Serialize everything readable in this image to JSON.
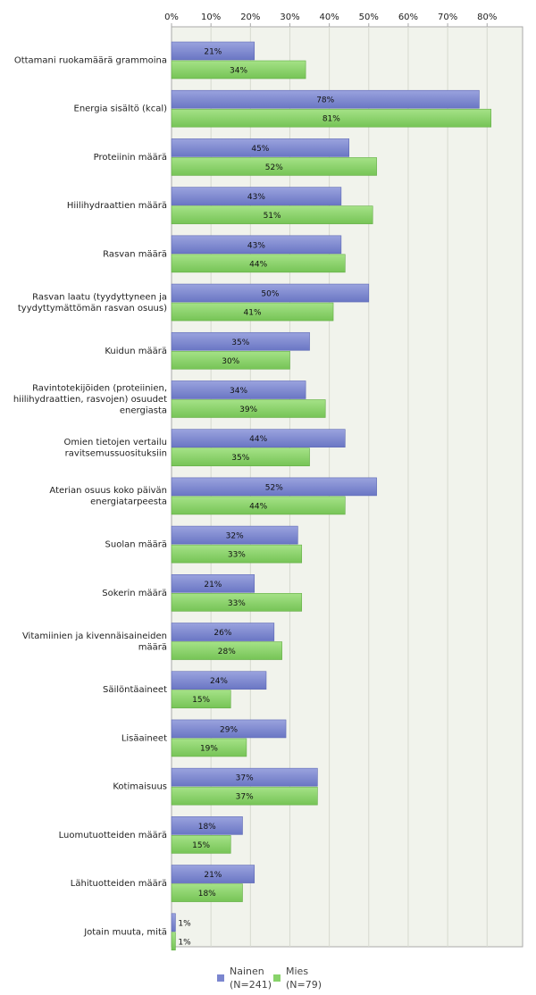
{
  "chart_data": {
    "type": "bar",
    "orientation": "horizontal",
    "title": "",
    "xlabel": "",
    "ylabel": "",
    "xlim": [
      0,
      89
    ],
    "x_ticks": [
      0,
      10,
      20,
      30,
      40,
      50,
      60,
      70,
      80
    ],
    "tick_suffix": "%",
    "grid": true,
    "legend_position": "bottom",
    "categories": [
      "Ottamani ruokamäärä grammoina",
      "Energia sisältö (kcal)",
      "Proteiinin määrä",
      "Hiilihydraattien määrä",
      "Rasvan määrä",
      "Rasvan laatu (tyydyttyneen ja tyydyttymättömän rasvan osuus)",
      "Kuidun määrä",
      "Ravintotekijöiden (proteiinien, hiilihydraattien, rasvojen) osuudet energiasta",
      "Omien tietojen vertailu ravitsemussuosituksiin",
      "Aterian osuus koko päivän energiatarpeesta",
      "Suolan määrä",
      "Sokerin määrä",
      "Vitamiinien ja kivennäisaineiden määrä",
      "Säilöntäaineet",
      "Lisäaineet",
      "Kotimaisuus",
      "Luomutuotteiden määrä",
      "Lähituotteiden määrä",
      "Jotain muuta, mitä"
    ],
    "category_lines": [
      [
        "Ottamani ruokamäärä grammoina"
      ],
      [
        "Energia sisältö (kcal)"
      ],
      [
        "Proteiinin määrä"
      ],
      [
        "Hiilihydraattien määrä"
      ],
      [
        "Rasvan määrä"
      ],
      [
        "Rasvan laatu (tyydyttyneen ja",
        "tyydyttymättömän rasvan osuus)"
      ],
      [
        "Kuidun määrä"
      ],
      [
        "Ravintotekijöiden (proteiinien,",
        "hiilihydraattien, rasvojen) osuudet",
        "energiasta"
      ],
      [
        "Omien tietojen vertailu",
        "ravitsemussuosituksiin"
      ],
      [
        "Aterian osuus koko päivän",
        "energiatarpeesta"
      ],
      [
        "Suolan määrä"
      ],
      [
        "Sokerin määrä"
      ],
      [
        "Vitamiinien ja kivennäisaineiden",
        "määrä"
      ],
      [
        "Säilöntäaineet"
      ],
      [
        "Lisäaineet"
      ],
      [
        "Kotimaisuus"
      ],
      [
        "Luomutuotteiden määrä"
      ],
      [
        "Lähituotteiden määrä"
      ],
      [
        "Jotain muuta, mitä"
      ]
    ],
    "series": [
      {
        "name": "Nainen",
        "n_label": "(N=241)",
        "color": "#7b86cf",
        "values": [
          21,
          78,
          45,
          43,
          43,
          50,
          35,
          34,
          44,
          52,
          32,
          21,
          26,
          24,
          29,
          37,
          18,
          21,
          1
        ]
      },
      {
        "name": "Mies",
        "n_label": "(N=79)",
        "color": "#88d36a",
        "values": [
          34,
          81,
          52,
          51,
          44,
          41,
          30,
          39,
          35,
          44,
          33,
          33,
          28,
          15,
          19,
          37,
          15,
          18,
          1
        ]
      }
    ]
  }
}
